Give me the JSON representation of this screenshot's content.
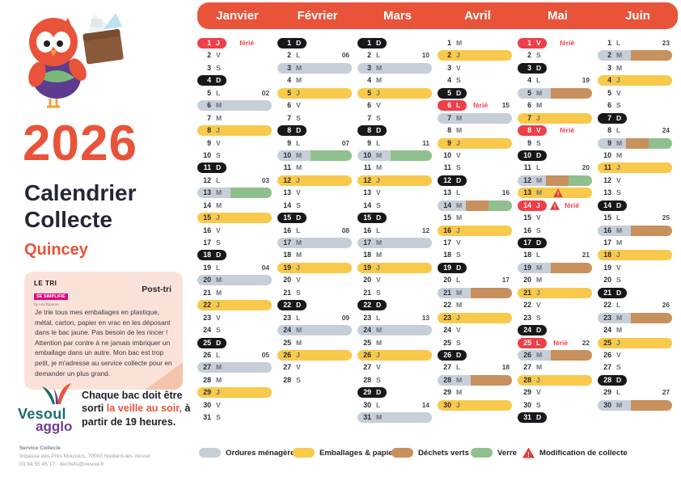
{
  "colors": {
    "accent": "#e9533a",
    "sunday_pill": "#17181c",
    "holiday_pill": "#ee3f4a",
    "warn": "#e23b3b",
    "bars": {
      "om": "#c6cfd8",
      "ep": "#f8c94b",
      "dv": "#c8905d",
      "ve": "#90bf8e"
    }
  },
  "sidebar": {
    "year": "2026",
    "title_line1": "Calendrier",
    "title_line2": "Collecte",
    "commune": "Quincey",
    "posttri": {
      "logo_line1": "LE TRI",
      "logo_line2": "SE SIMPLIFIE",
      "logo_line3": "by Les Ripeurs",
      "heading": "Post-tri",
      "body": "Je trie tous mes emballages en plastique, métal, carton, papier en vrac en les déposant dans le bac jaune. Pas besoin de les rincer ! Attention par contre à ne jamais imbriquer un emballage dans un autre. Mon bac est trop petit, je m'adresse au service collecte pour en demander un plus grand."
    },
    "reminder": {
      "pre": "Chaque bac doit être sorti ",
      "highlight": "la veille au soir,",
      "post": " à partir de 19 heures."
    },
    "logo": {
      "line1": "Vesoul",
      "line2": "agglo"
    },
    "contact": {
      "line1": "Service Collecte",
      "line2": "Impasse des Prés Moussus, 70000 Noidans-lès-Vesoul",
      "line3": "03 84 55 45 17 · dechets@vesoul.fr"
    }
  },
  "calendar": {
    "ferie_label": "férié",
    "months": [
      {
        "name": "Janvier",
        "days": [
          {
            "d": 1,
            "l": "J",
            "p": "fer",
            "fer": true
          },
          {
            "d": 2,
            "l": "V"
          },
          {
            "d": 3,
            "l": "S"
          },
          {
            "d": 4,
            "l": "D",
            "p": "dim"
          },
          {
            "d": 5,
            "l": "L",
            "wk": "02"
          },
          {
            "d": 6,
            "l": "M",
            "b": [
              "om"
            ]
          },
          {
            "d": 7,
            "l": "M"
          },
          {
            "d": 8,
            "l": "J",
            "b": [
              "ep"
            ]
          },
          {
            "d": 9,
            "l": "V"
          },
          {
            "d": 10,
            "l": "S"
          },
          {
            "d": 11,
            "l": "D",
            "p": "dim"
          },
          {
            "d": 12,
            "l": "L",
            "wk": "03"
          },
          {
            "d": 13,
            "l": "M",
            "b": [
              "om",
              "ve"
            ]
          },
          {
            "d": 14,
            "l": "M"
          },
          {
            "d": 15,
            "l": "J",
            "b": [
              "ep"
            ]
          },
          {
            "d": 16,
            "l": "V"
          },
          {
            "d": 17,
            "l": "S"
          },
          {
            "d": 18,
            "l": "D",
            "p": "dim"
          },
          {
            "d": 19,
            "l": "L",
            "wk": "04"
          },
          {
            "d": 20,
            "l": "M",
            "b": [
              "om"
            ]
          },
          {
            "d": 21,
            "l": "M"
          },
          {
            "d": 22,
            "l": "J",
            "b": [
              "ep"
            ]
          },
          {
            "d": 23,
            "l": "V"
          },
          {
            "d": 24,
            "l": "S"
          },
          {
            "d": 25,
            "l": "D",
            "p": "dim"
          },
          {
            "d": 26,
            "l": "L",
            "wk": "05"
          },
          {
            "d": 27,
            "l": "M",
            "b": [
              "om"
            ]
          },
          {
            "d": 28,
            "l": "M"
          },
          {
            "d": 29,
            "l": "J",
            "b": [
              "ep"
            ]
          },
          {
            "d": 30,
            "l": "V"
          },
          {
            "d": 31,
            "l": "S"
          }
        ]
      },
      {
        "name": "Février",
        "days": [
          {
            "d": 1,
            "l": "D",
            "p": "dim"
          },
          {
            "d": 2,
            "l": "L",
            "wk": "06"
          },
          {
            "d": 3,
            "l": "M",
            "b": [
              "om"
            ]
          },
          {
            "d": 4,
            "l": "M"
          },
          {
            "d": 5,
            "l": "J",
            "b": [
              "ep"
            ]
          },
          {
            "d": 6,
            "l": "V"
          },
          {
            "d": 7,
            "l": "S"
          },
          {
            "d": 8,
            "l": "D",
            "p": "dim"
          },
          {
            "d": 9,
            "l": "L",
            "wk": "07"
          },
          {
            "d": 10,
            "l": "M",
            "b": [
              "om",
              "ve"
            ]
          },
          {
            "d": 11,
            "l": "M"
          },
          {
            "d": 12,
            "l": "J",
            "b": [
              "ep"
            ]
          },
          {
            "d": 13,
            "l": "V"
          },
          {
            "d": 14,
            "l": "S"
          },
          {
            "d": 15,
            "l": "D",
            "p": "dim"
          },
          {
            "d": 16,
            "l": "L",
            "wk": "08"
          },
          {
            "d": 17,
            "l": "M",
            "b": [
              "om"
            ]
          },
          {
            "d": 18,
            "l": "M"
          },
          {
            "d": 19,
            "l": "J",
            "b": [
              "ep"
            ]
          },
          {
            "d": 20,
            "l": "V"
          },
          {
            "d": 21,
            "l": "S"
          },
          {
            "d": 22,
            "l": "D",
            "p": "dim"
          },
          {
            "d": 23,
            "l": "L",
            "wk": "09"
          },
          {
            "d": 24,
            "l": "M",
            "b": [
              "om"
            ]
          },
          {
            "d": 25,
            "l": "M"
          },
          {
            "d": 26,
            "l": "J",
            "b": [
              "ep"
            ]
          },
          {
            "d": 27,
            "l": "V"
          },
          {
            "d": 28,
            "l": "S"
          }
        ]
      },
      {
        "name": "Mars",
        "days": [
          {
            "d": 1,
            "l": "D",
            "p": "dim"
          },
          {
            "d": 2,
            "l": "L",
            "wk": "10"
          },
          {
            "d": 3,
            "l": "M",
            "b": [
              "om"
            ]
          },
          {
            "d": 4,
            "l": "M"
          },
          {
            "d": 5,
            "l": "J",
            "b": [
              "ep"
            ]
          },
          {
            "d": 6,
            "l": "V"
          },
          {
            "d": 7,
            "l": "S"
          },
          {
            "d": 8,
            "l": "D",
            "p": "dim"
          },
          {
            "d": 9,
            "l": "L",
            "wk": "11"
          },
          {
            "d": 10,
            "l": "M",
            "b": [
              "om",
              "ve"
            ]
          },
          {
            "d": 11,
            "l": "M"
          },
          {
            "d": 12,
            "l": "J",
            "b": [
              "ep"
            ]
          },
          {
            "d": 13,
            "l": "V"
          },
          {
            "d": 14,
            "l": "S"
          },
          {
            "d": 15,
            "l": "D",
            "p": "dim"
          },
          {
            "d": 16,
            "l": "L",
            "wk": "12"
          },
          {
            "d": 17,
            "l": "M",
            "b": [
              "om"
            ]
          },
          {
            "d": 18,
            "l": "M"
          },
          {
            "d": 19,
            "l": "J",
            "b": [
              "ep"
            ]
          },
          {
            "d": 20,
            "l": "V"
          },
          {
            "d": 21,
            "l": "S"
          },
          {
            "d": 22,
            "l": "D",
            "p": "dim"
          },
          {
            "d": 23,
            "l": "L",
            "wk": "13"
          },
          {
            "d": 24,
            "l": "M",
            "b": [
              "om"
            ]
          },
          {
            "d": 25,
            "l": "M"
          },
          {
            "d": 26,
            "l": "J",
            "b": [
              "ep"
            ]
          },
          {
            "d": 27,
            "l": "V"
          },
          {
            "d": 28,
            "l": "S"
          },
          {
            "d": 29,
            "l": "D",
            "p": "dim"
          },
          {
            "d": 30,
            "l": "L",
            "wk": "14"
          },
          {
            "d": 31,
            "l": "M",
            "b": [
              "om"
            ]
          }
        ]
      },
      {
        "name": "Avril",
        "days": [
          {
            "d": 1,
            "l": "M"
          },
          {
            "d": 2,
            "l": "J",
            "b": [
              "ep"
            ]
          },
          {
            "d": 3,
            "l": "V"
          },
          {
            "d": 4,
            "l": "S"
          },
          {
            "d": 5,
            "l": "D",
            "p": "dim"
          },
          {
            "d": 6,
            "l": "L",
            "p": "fer",
            "fer": true,
            "wk": "15"
          },
          {
            "d": 7,
            "l": "M",
            "b": [
              "om"
            ]
          },
          {
            "d": 8,
            "l": "M"
          },
          {
            "d": 9,
            "l": "J",
            "b": [
              "ep"
            ]
          },
          {
            "d": 10,
            "l": "V"
          },
          {
            "d": 11,
            "l": "S"
          },
          {
            "d": 12,
            "l": "D",
            "p": "dim"
          },
          {
            "d": 13,
            "l": "L",
            "wk": "16"
          },
          {
            "d": 14,
            "l": "M",
            "b": [
              "om",
              "dv",
              "ve"
            ]
          },
          {
            "d": 15,
            "l": "M"
          },
          {
            "d": 16,
            "l": "J",
            "b": [
              "ep"
            ]
          },
          {
            "d": 17,
            "l": "V"
          },
          {
            "d": 18,
            "l": "S"
          },
          {
            "d": 19,
            "l": "D",
            "p": "dim"
          },
          {
            "d": 20,
            "l": "L",
            "wk": "17"
          },
          {
            "d": 21,
            "l": "M",
            "b": [
              "om",
              "dv"
            ]
          },
          {
            "d": 22,
            "l": "M"
          },
          {
            "d": 23,
            "l": "J",
            "b": [
              "ep"
            ]
          },
          {
            "d": 24,
            "l": "V"
          },
          {
            "d": 25,
            "l": "S"
          },
          {
            "d": 26,
            "l": "D",
            "p": "dim"
          },
          {
            "d": 27,
            "l": "L",
            "wk": "18"
          },
          {
            "d": 28,
            "l": "M",
            "b": [
              "om",
              "dv"
            ]
          },
          {
            "d": 29,
            "l": "M"
          },
          {
            "d": 30,
            "l": "J",
            "b": [
              "ep"
            ]
          }
        ]
      },
      {
        "name": "Mai",
        "days": [
          {
            "d": 1,
            "l": "V",
            "p": "fer",
            "fer": true
          },
          {
            "d": 2,
            "l": "S"
          },
          {
            "d": 3,
            "l": "D",
            "p": "dim"
          },
          {
            "d": 4,
            "l": "L",
            "wk": "19"
          },
          {
            "d": 5,
            "l": "M",
            "b": [
              "om",
              "dv"
            ]
          },
          {
            "d": 6,
            "l": "M"
          },
          {
            "d": 7,
            "l": "J",
            "b": [
              "ep"
            ]
          },
          {
            "d": 8,
            "l": "V",
            "p": "fer",
            "fer": true
          },
          {
            "d": 9,
            "l": "S"
          },
          {
            "d": 10,
            "l": "D",
            "p": "dim"
          },
          {
            "d": 11,
            "l": "L",
            "wk": "20"
          },
          {
            "d": 12,
            "l": "M",
            "b": [
              "om",
              "dv",
              "ve"
            ]
          },
          {
            "d": 13,
            "l": "M",
            "b": [
              "ep"
            ],
            "warn": true
          },
          {
            "d": 14,
            "l": "J",
            "p": "fer",
            "fer": true,
            "warn": true
          },
          {
            "d": 15,
            "l": "V"
          },
          {
            "d": 16,
            "l": "S"
          },
          {
            "d": 17,
            "l": "D",
            "p": "dim"
          },
          {
            "d": 18,
            "l": "L",
            "wk": "21"
          },
          {
            "d": 19,
            "l": "M",
            "b": [
              "om",
              "dv"
            ]
          },
          {
            "d": 20,
            "l": "M"
          },
          {
            "d": 21,
            "l": "J",
            "b": [
              "ep"
            ]
          },
          {
            "d": 22,
            "l": "V"
          },
          {
            "d": 23,
            "l": "S"
          },
          {
            "d": 24,
            "l": "D",
            "p": "dim"
          },
          {
            "d": 25,
            "l": "L",
            "p": "fer",
            "fer": true,
            "wk": "22"
          },
          {
            "d": 26,
            "l": "M",
            "b": [
              "om",
              "dv"
            ]
          },
          {
            "d": 27,
            "l": "M"
          },
          {
            "d": 28,
            "l": "J",
            "b": [
              "ep"
            ]
          },
          {
            "d": 29,
            "l": "V"
          },
          {
            "d": 30,
            "l": "S"
          },
          {
            "d": 31,
            "l": "D",
            "p": "dim"
          }
        ]
      },
      {
        "name": "Juin",
        "days": [
          {
            "d": 1,
            "l": "L",
            "wk": "23"
          },
          {
            "d": 2,
            "l": "M",
            "b": [
              "om",
              "dv"
            ]
          },
          {
            "d": 3,
            "l": "M"
          },
          {
            "d": 4,
            "l": "J",
            "b": [
              "ep"
            ]
          },
          {
            "d": 5,
            "l": "V"
          },
          {
            "d": 6,
            "l": "S"
          },
          {
            "d": 7,
            "l": "D",
            "p": "dim"
          },
          {
            "d": 8,
            "l": "L",
            "wk": "24"
          },
          {
            "d": 9,
            "l": "M",
            "b": [
              "om",
              "dv",
              "ve"
            ]
          },
          {
            "d": 10,
            "l": "M"
          },
          {
            "d": 11,
            "l": "J",
            "b": [
              "ep"
            ]
          },
          {
            "d": 12,
            "l": "V"
          },
          {
            "d": 13,
            "l": "S"
          },
          {
            "d": 14,
            "l": "D",
            "p": "dim"
          },
          {
            "d": 15,
            "l": "L",
            "wk": "25"
          },
          {
            "d": 16,
            "l": "M",
            "b": [
              "om",
              "dv"
            ]
          },
          {
            "d": 17,
            "l": "M"
          },
          {
            "d": 18,
            "l": "J",
            "b": [
              "ep"
            ]
          },
          {
            "d": 19,
            "l": "V"
          },
          {
            "d": 20,
            "l": "S"
          },
          {
            "d": 21,
            "l": "D",
            "p": "dim"
          },
          {
            "d": 22,
            "l": "L",
            "wk": "26"
          },
          {
            "d": 23,
            "l": "M",
            "b": [
              "om",
              "dv"
            ]
          },
          {
            "d": 24,
            "l": "M"
          },
          {
            "d": 25,
            "l": "J",
            "b": [
              "ep"
            ]
          },
          {
            "d": 26,
            "l": "V"
          },
          {
            "d": 27,
            "l": "S"
          },
          {
            "d": 28,
            "l": "D",
            "p": "dim"
          },
          {
            "d": 29,
            "l": "L",
            "wk": "27"
          },
          {
            "d": 30,
            "l": "M",
            "b": [
              "om",
              "dv"
            ]
          }
        ]
      }
    ]
  },
  "legend": {
    "items": [
      {
        "key": "om",
        "label": "Ordures ménagères"
      },
      {
        "key": "ep",
        "label": "Emballages & papiers"
      },
      {
        "key": "dv",
        "label": "Déchets verts"
      },
      {
        "key": "ve",
        "label": "Verre"
      },
      {
        "key": "warn",
        "label": "Modification de collecte"
      }
    ]
  }
}
